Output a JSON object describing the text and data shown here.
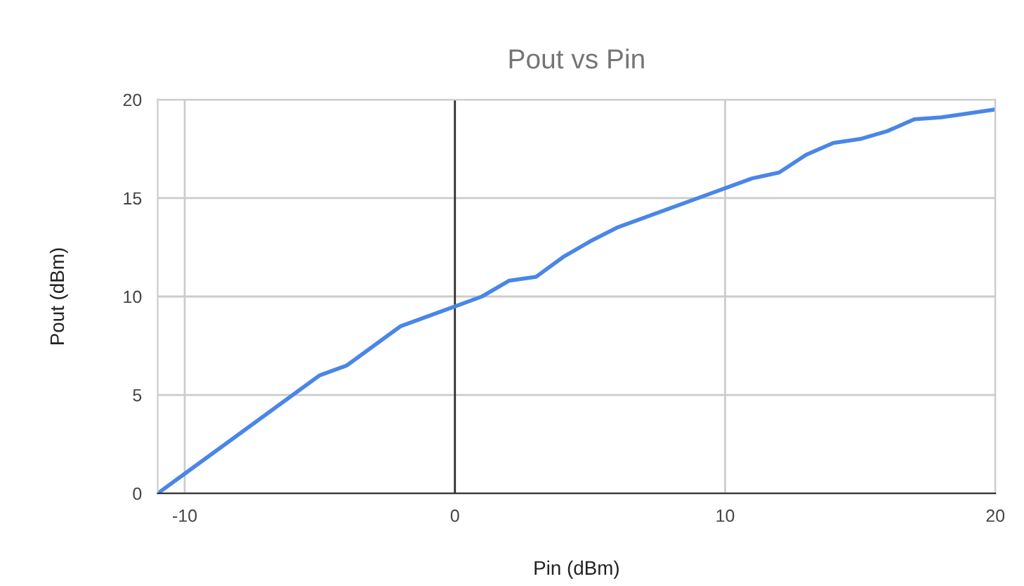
{
  "chart_data": {
    "type": "line",
    "title": "Pout vs Pin",
    "xlabel": "Pin (dBm)",
    "ylabel": "Pout (dBm)",
    "x": [
      -11,
      -5,
      -4,
      -2,
      -1,
      0,
      1,
      2,
      3,
      4,
      5,
      6,
      10,
      11,
      12,
      13,
      14,
      15,
      16,
      17,
      18,
      20
    ],
    "series": [
      {
        "color": "#4a86e8",
        "values": [
          0,
          6,
          6.5,
          8.5,
          9,
          9.5,
          10,
          10.8,
          11,
          12,
          12.8,
          13.5,
          15.5,
          16,
          16.3,
          17.2,
          17.8,
          18,
          18.4,
          19,
          19.1,
          19.5
        ]
      }
    ],
    "xlim": [
      -11,
      20
    ],
    "ylim": [
      0,
      20
    ],
    "xticks": [
      -10,
      0,
      10,
      20
    ],
    "yticks": [
      0,
      5,
      10,
      15,
      20
    ],
    "grid": true,
    "ref_lines": [
      {
        "axis": "x",
        "value": 0,
        "color": "#333333"
      }
    ]
  }
}
